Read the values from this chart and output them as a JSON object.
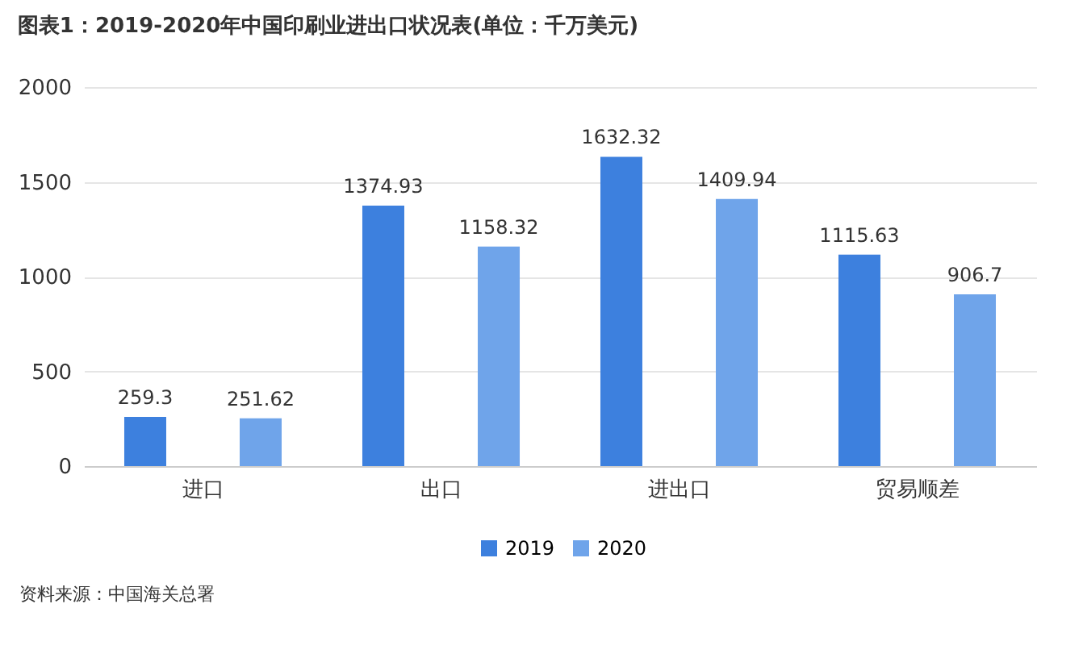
{
  "chart_data": {
    "type": "bar",
    "title": "图表1：2019-2020年中国印刷业进出口状况表(单位：千万美元)",
    "categories": [
      "进口",
      "出口",
      "进出口",
      "贸易顺差"
    ],
    "series": [
      {
        "name": "2019",
        "color": "#3d80de",
        "values": [
          259.3,
          1374.93,
          1632.32,
          1115.63
        ]
      },
      {
        "name": "2020",
        "color": "#6fa4ea",
        "values": [
          251.62,
          1158.32,
          1409.94,
          906.7
        ]
      }
    ],
    "ylim": [
      0,
      2000
    ],
    "yticks": [
      0,
      500,
      1000,
      1500,
      2000
    ],
    "grid": "y",
    "legend": "bottom",
    "data_labels": true,
    "annotations": [
      "资料来源：中国海关总署"
    ]
  }
}
